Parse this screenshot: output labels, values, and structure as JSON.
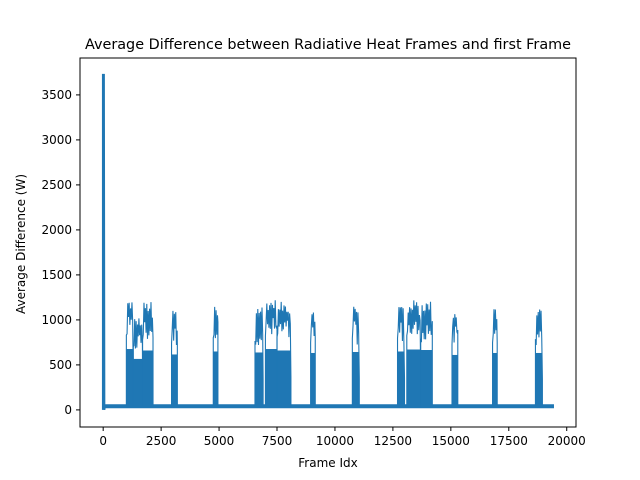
{
  "chart_data": {
    "type": "line",
    "title": "Average Difference between Radiative Heat Frames and first Frame",
    "xlabel": "Frame Idx",
    "ylabel": "Average Difference (W)",
    "xlim": [
      -1000,
      20400
    ],
    "ylim": [
      -190,
      3910
    ],
    "x_ticks": [
      0,
      2500,
      5000,
      7500,
      10000,
      12500,
      15000,
      17500,
      20000
    ],
    "y_ticks": [
      0,
      500,
      1000,
      1500,
      2000,
      2500,
      3000,
      3500
    ],
    "grid": false,
    "legend": "none",
    "series": [
      {
        "color": "#1f77b4",
        "baseline": 40,
        "baseline_range": [
          0,
          19450
        ],
        "initial_spike": [
          [
            0,
            0
          ],
          [
            0,
            3720
          ],
          [
            20,
            3720
          ],
          [
            40,
            0
          ],
          [
            60,
            40
          ]
        ],
        "bursts": [
          {
            "x_start": 1000,
            "x_end": 1300,
            "peak": 1230
          },
          {
            "x_start": 1300,
            "x_end": 1700,
            "peak": 1030
          },
          {
            "x_start": 1700,
            "x_end": 2150,
            "peak": 1200
          },
          {
            "x_start": 2950,
            "x_end": 3200,
            "peak": 1120
          },
          {
            "x_start": 4750,
            "x_end": 4950,
            "peak": 1180
          },
          {
            "x_start": 6550,
            "x_end": 6900,
            "peak": 1160
          },
          {
            "x_start": 7000,
            "x_end": 7500,
            "peak": 1230
          },
          {
            "x_start": 7500,
            "x_end": 8100,
            "peak": 1200
          },
          {
            "x_start": 8950,
            "x_end": 9150,
            "peak": 1150
          },
          {
            "x_start": 10750,
            "x_end": 11050,
            "peak": 1170
          },
          {
            "x_start": 12700,
            "x_end": 13000,
            "peak": 1180
          },
          {
            "x_start": 13100,
            "x_end": 13700,
            "peak": 1220
          },
          {
            "x_start": 13700,
            "x_end": 14200,
            "peak": 1210
          },
          {
            "x_start": 15050,
            "x_end": 15300,
            "peak": 1110
          },
          {
            "x_start": 16800,
            "x_end": 17000,
            "peak": 1150
          },
          {
            "x_start": 18650,
            "x_end": 18950,
            "peak": 1150
          }
        ]
      }
    ]
  }
}
